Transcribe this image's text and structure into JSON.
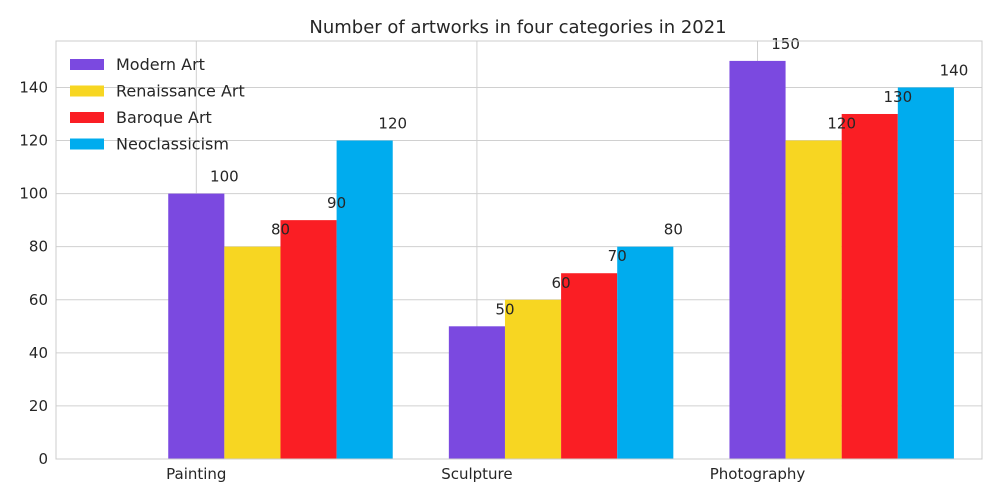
{
  "chart_data": {
    "type": "bar",
    "title": "Number of artworks in four categories in 2021",
    "xlabel": "",
    "ylabel": "",
    "categories": [
      "Painting",
      "Sculpture",
      "Photography"
    ],
    "series": [
      {
        "name": "Modern Art",
        "color": "#7b49e0",
        "values": [
          100,
          50,
          150
        ]
      },
      {
        "name": "Renaissance Art",
        "color": "#f7d622",
        "values": [
          80,
          60,
          120
        ]
      },
      {
        "name": "Baroque Art",
        "color": "#fa1e24",
        "values": [
          90,
          70,
          130
        ]
      },
      {
        "name": "Neoclassicism",
        "color": "#00acee",
        "values": [
          120,
          80,
          140
        ]
      }
    ],
    "ylim": [
      0,
      157.5
    ],
    "yticks": [
      0,
      20,
      40,
      60,
      80,
      100,
      120,
      140
    ],
    "grid": true,
    "legend_position": "top-left"
  }
}
